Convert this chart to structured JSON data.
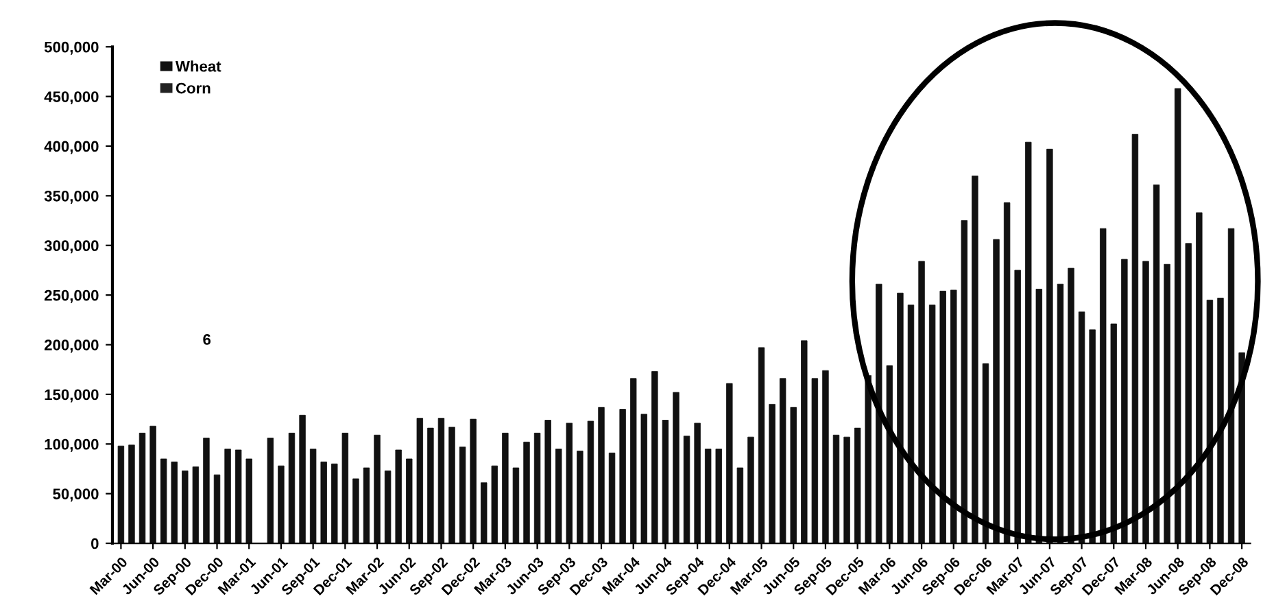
{
  "chart_data": {
    "type": "bar",
    "categories": [
      "Mar-00",
      null,
      null,
      "Jun-00",
      null,
      null,
      "Sep-00",
      null,
      null,
      "Dec-00",
      null,
      null,
      "Mar-01",
      null,
      null,
      "Jun-01",
      null,
      null,
      "Sep-01",
      null,
      null,
      "Dec-01",
      null,
      null,
      "Mar-02",
      null,
      null,
      "Jun-02",
      null,
      null,
      "Sep-02",
      null,
      null,
      "Dec-02",
      null,
      null,
      "Mar-03",
      null,
      null,
      "Jun-03",
      null,
      null,
      "Sep-03",
      null,
      null,
      "Dec-03",
      null,
      null,
      "Mar-04",
      null,
      null,
      "Jun-04",
      null,
      null,
      "Sep-04",
      null,
      null,
      "Dec-04",
      null,
      null,
      "Mar-05",
      null,
      null,
      "Jun-05",
      null,
      null,
      "Sep-05",
      null,
      null,
      "Dec-05",
      null,
      null,
      "Mar-06",
      null,
      null,
      "Jun-06",
      null,
      null,
      "Sep-06",
      null,
      null,
      "Dec-06",
      null,
      null,
      "Mar-07",
      null,
      null,
      "Jun-07",
      null,
      null,
      "Sep-07",
      null,
      null,
      "Dec-07",
      null,
      null,
      "Mar-08",
      null,
      null,
      "Jun-08",
      null,
      null,
      "Sep-08",
      null,
      null,
      "Dec-08"
    ],
    "series": [
      {
        "name": "Wheat",
        "color": "#111111",
        "values": [
          98000,
          99000,
          111000,
          118000,
          85000,
          82000,
          73000,
          77000,
          106000,
          69000,
          95000,
          94000,
          85000,
          null,
          106000,
          78000,
          111000,
          129000,
          95000,
          82000,
          80000,
          111000,
          65000,
          76000,
          109000,
          73000,
          94000,
          85000,
          126000,
          116000,
          126000,
          117000,
          97000,
          125000,
          61000,
          78000,
          111000,
          76000,
          102000,
          111000,
          124000,
          95000,
          121000,
          93000,
          123000,
          137000,
          91000,
          135000,
          166000,
          130000,
          173000,
          124000,
          152000,
          108000,
          121000,
          95000,
          95000,
          161000,
          76000,
          107000,
          197000,
          140000,
          166000,
          137000,
          204000,
          166000,
          174000,
          109000,
          107000,
          116000,
          169000,
          261000,
          179000,
          252000,
          240000,
          284000,
          240000,
          254000,
          255000,
          325000,
          370000,
          181000,
          306000,
          343000,
          275000,
          404000,
          256000,
          397000,
          261000,
          277000,
          233000,
          215000,
          317000,
          221000,
          286000,
          412000,
          284000,
          361000,
          281000,
          458000,
          302000,
          333000,
          245000,
          247000,
          317000,
          192000
        ]
      },
      {
        "name": "Corn",
        "color": "#222222",
        "values": [
          null,
          null,
          null,
          null,
          null,
          null,
          null,
          null,
          null,
          null,
          null,
          null,
          null,
          null,
          null,
          null,
          null,
          null,
          null,
          null,
          null,
          null,
          null,
          null,
          null,
          null,
          null,
          null,
          null,
          null,
          null,
          null,
          null,
          null,
          null,
          null,
          null,
          null,
          null,
          null,
          null,
          null,
          null,
          null,
          null,
          null,
          null,
          null,
          null,
          null,
          null,
          null,
          null,
          null,
          null,
          null,
          null,
          null,
          null,
          null,
          null,
          null,
          null,
          null,
          null,
          null,
          null,
          null,
          null,
          null,
          null,
          null,
          null,
          null,
          null,
          null,
          null,
          null,
          null,
          null,
          null,
          null,
          null,
          null,
          null,
          null,
          null,
          null,
          null,
          null,
          null,
          null,
          null,
          null,
          null,
          null,
          null,
          null,
          null,
          null,
          null,
          null,
          null,
          null,
          null,
          null
        ]
      }
    ],
    "ylim": [
      0,
      500000
    ],
    "yticks": [
      {
        "value": 0,
        "label": "0"
      },
      {
        "value": 50000,
        "label": "50,000"
      },
      {
        "value": 100000,
        "label": "100,000"
      },
      {
        "value": 150000,
        "label": "150,000"
      },
      {
        "value": 200000,
        "label": "200,000"
      },
      {
        "value": 250000,
        "label": "250,000"
      },
      {
        "value": 300000,
        "label": "300,000"
      },
      {
        "value": 350000,
        "label": "350,000"
      },
      {
        "value": 400000,
        "label": "400,000"
      },
      {
        "value": 450000,
        "label": "450,000"
      },
      {
        "value": 500000,
        "label": "500,000"
      }
    ],
    "annotations": [
      "6"
    ],
    "grid": false,
    "legend": "top left"
  }
}
